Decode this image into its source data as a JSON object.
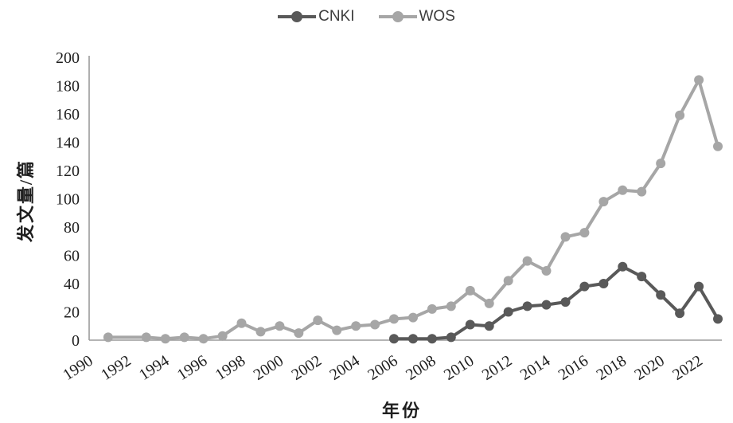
{
  "chart_data": {
    "type": "line",
    "title": "",
    "xlabel": "年份",
    "ylabel": "发文量/篇",
    "x": [
      1990,
      1991,
      1992,
      1993,
      1994,
      1995,
      1996,
      1997,
      1998,
      1999,
      2000,
      2001,
      2002,
      2003,
      2004,
      2005,
      2006,
      2007,
      2008,
      2009,
      2010,
      2011,
      2012,
      2013,
      2014,
      2015,
      2016,
      2017,
      2018,
      2019,
      2020,
      2021,
      2022,
      2023
    ],
    "x_tick_labels": [
      "1990",
      "1992",
      "1994",
      "1996",
      "1998",
      "2000",
      "2002",
      "2004",
      "2006",
      "2008",
      "2010",
      "2012",
      "2014",
      "2016",
      "2018",
      "2020",
      "2022"
    ],
    "y_ticks": [
      0,
      20,
      40,
      60,
      80,
      100,
      120,
      140,
      160,
      180,
      200
    ],
    "ylim": [
      0,
      200
    ],
    "grid": false,
    "legend_position": "top-center",
    "series": [
      {
        "name": "CNKI",
        "color": "#595959",
        "values": [
          null,
          null,
          null,
          null,
          null,
          null,
          null,
          null,
          null,
          null,
          null,
          null,
          null,
          null,
          null,
          null,
          1,
          1,
          1,
          2,
          11,
          10,
          20,
          24,
          25,
          27,
          38,
          40,
          52,
          45,
          32,
          19,
          38,
          15
        ]
      },
      {
        "name": "WOS",
        "color": "#a6a6a6",
        "values": [
          null,
          2,
          null,
          2,
          1,
          2,
          1,
          3,
          12,
          6,
          10,
          5,
          14,
          7,
          10,
          11,
          15,
          16,
          22,
          24,
          35,
          26,
          42,
          56,
          49,
          73,
          76,
          98,
          106,
          105,
          125,
          159,
          184,
          137
        ]
      }
    ]
  },
  "colors": {
    "axis": "#9b9b9b",
    "tick_text": "#1f1f1f"
  }
}
